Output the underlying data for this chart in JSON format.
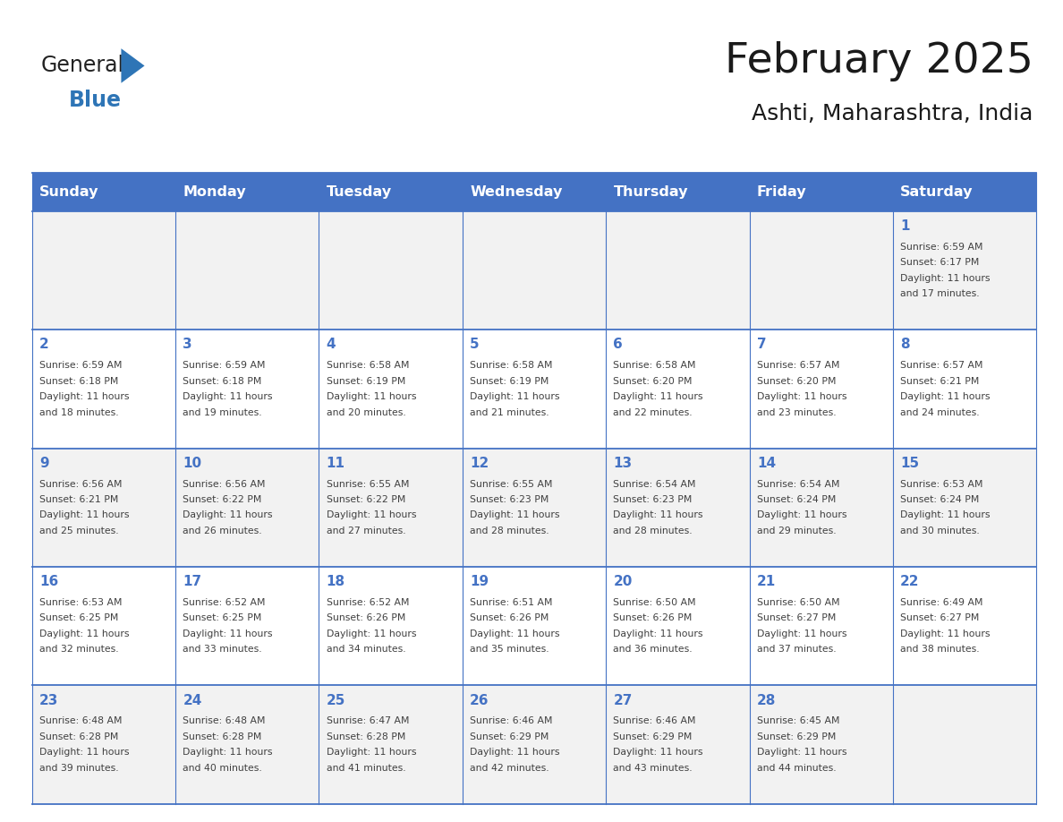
{
  "title": "February 2025",
  "subtitle": "Ashti, Maharashtra, India",
  "days_of_week": [
    "Sunday",
    "Monday",
    "Tuesday",
    "Wednesday",
    "Thursday",
    "Friday",
    "Saturday"
  ],
  "header_bg_color": "#4472C4",
  "header_text_color": "#FFFFFF",
  "cell_bg_even": "#F2F2F2",
  "cell_bg_odd": "#FFFFFF",
  "cell_border_color": "#4472C4",
  "day_num_color": "#4472C4",
  "text_color": "#404040",
  "title_color": "#1a1a1a",
  "logo_general_color": "#222222",
  "logo_blue_color": "#2E75B6",
  "grid_line_color": "#4472C4",
  "calendar_data": [
    {
      "day": 1,
      "col": 6,
      "row": 0,
      "sunrise": "6:59 AM",
      "sunset": "6:17 PM",
      "daylight_hours": 11,
      "daylight_minutes": 17
    },
    {
      "day": 2,
      "col": 0,
      "row": 1,
      "sunrise": "6:59 AM",
      "sunset": "6:18 PM",
      "daylight_hours": 11,
      "daylight_minutes": 18
    },
    {
      "day": 3,
      "col": 1,
      "row": 1,
      "sunrise": "6:59 AM",
      "sunset": "6:18 PM",
      "daylight_hours": 11,
      "daylight_minutes": 19
    },
    {
      "day": 4,
      "col": 2,
      "row": 1,
      "sunrise": "6:58 AM",
      "sunset": "6:19 PM",
      "daylight_hours": 11,
      "daylight_minutes": 20
    },
    {
      "day": 5,
      "col": 3,
      "row": 1,
      "sunrise": "6:58 AM",
      "sunset": "6:19 PM",
      "daylight_hours": 11,
      "daylight_minutes": 21
    },
    {
      "day": 6,
      "col": 4,
      "row": 1,
      "sunrise": "6:58 AM",
      "sunset": "6:20 PM",
      "daylight_hours": 11,
      "daylight_minutes": 22
    },
    {
      "day": 7,
      "col": 5,
      "row": 1,
      "sunrise": "6:57 AM",
      "sunset": "6:20 PM",
      "daylight_hours": 11,
      "daylight_minutes": 23
    },
    {
      "day": 8,
      "col": 6,
      "row": 1,
      "sunrise": "6:57 AM",
      "sunset": "6:21 PM",
      "daylight_hours": 11,
      "daylight_minutes": 24
    },
    {
      "day": 9,
      "col": 0,
      "row": 2,
      "sunrise": "6:56 AM",
      "sunset": "6:21 PM",
      "daylight_hours": 11,
      "daylight_minutes": 25
    },
    {
      "day": 10,
      "col": 1,
      "row": 2,
      "sunrise": "6:56 AM",
      "sunset": "6:22 PM",
      "daylight_hours": 11,
      "daylight_minutes": 26
    },
    {
      "day": 11,
      "col": 2,
      "row": 2,
      "sunrise": "6:55 AM",
      "sunset": "6:22 PM",
      "daylight_hours": 11,
      "daylight_minutes": 27
    },
    {
      "day": 12,
      "col": 3,
      "row": 2,
      "sunrise": "6:55 AM",
      "sunset": "6:23 PM",
      "daylight_hours": 11,
      "daylight_minutes": 28
    },
    {
      "day": 13,
      "col": 4,
      "row": 2,
      "sunrise": "6:54 AM",
      "sunset": "6:23 PM",
      "daylight_hours": 11,
      "daylight_minutes": 28
    },
    {
      "day": 14,
      "col": 5,
      "row": 2,
      "sunrise": "6:54 AM",
      "sunset": "6:24 PM",
      "daylight_hours": 11,
      "daylight_minutes": 29
    },
    {
      "day": 15,
      "col": 6,
      "row": 2,
      "sunrise": "6:53 AM",
      "sunset": "6:24 PM",
      "daylight_hours": 11,
      "daylight_minutes": 30
    },
    {
      "day": 16,
      "col": 0,
      "row": 3,
      "sunrise": "6:53 AM",
      "sunset": "6:25 PM",
      "daylight_hours": 11,
      "daylight_minutes": 32
    },
    {
      "day": 17,
      "col": 1,
      "row": 3,
      "sunrise": "6:52 AM",
      "sunset": "6:25 PM",
      "daylight_hours": 11,
      "daylight_minutes": 33
    },
    {
      "day": 18,
      "col": 2,
      "row": 3,
      "sunrise": "6:52 AM",
      "sunset": "6:26 PM",
      "daylight_hours": 11,
      "daylight_minutes": 34
    },
    {
      "day": 19,
      "col": 3,
      "row": 3,
      "sunrise": "6:51 AM",
      "sunset": "6:26 PM",
      "daylight_hours": 11,
      "daylight_minutes": 35
    },
    {
      "day": 20,
      "col": 4,
      "row": 3,
      "sunrise": "6:50 AM",
      "sunset": "6:26 PM",
      "daylight_hours": 11,
      "daylight_minutes": 36
    },
    {
      "day": 21,
      "col": 5,
      "row": 3,
      "sunrise": "6:50 AM",
      "sunset": "6:27 PM",
      "daylight_hours": 11,
      "daylight_minutes": 37
    },
    {
      "day": 22,
      "col": 6,
      "row": 3,
      "sunrise": "6:49 AM",
      "sunset": "6:27 PM",
      "daylight_hours": 11,
      "daylight_minutes": 38
    },
    {
      "day": 23,
      "col": 0,
      "row": 4,
      "sunrise": "6:48 AM",
      "sunset": "6:28 PM",
      "daylight_hours": 11,
      "daylight_minutes": 39
    },
    {
      "day": 24,
      "col": 1,
      "row": 4,
      "sunrise": "6:48 AM",
      "sunset": "6:28 PM",
      "daylight_hours": 11,
      "daylight_minutes": 40
    },
    {
      "day": 25,
      "col": 2,
      "row": 4,
      "sunrise": "6:47 AM",
      "sunset": "6:28 PM",
      "daylight_hours": 11,
      "daylight_minutes": 41
    },
    {
      "day": 26,
      "col": 3,
      "row": 4,
      "sunrise": "6:46 AM",
      "sunset": "6:29 PM",
      "daylight_hours": 11,
      "daylight_minutes": 42
    },
    {
      "day": 27,
      "col": 4,
      "row": 4,
      "sunrise": "6:46 AM",
      "sunset": "6:29 PM",
      "daylight_hours": 11,
      "daylight_minutes": 43
    },
    {
      "day": 28,
      "col": 5,
      "row": 4,
      "sunrise": "6:45 AM",
      "sunset": "6:29 PM",
      "daylight_hours": 11,
      "daylight_minutes": 44
    }
  ],
  "num_rows": 5,
  "num_cols": 7,
  "figsize": [
    11.88,
    9.18
  ],
  "dpi": 100
}
